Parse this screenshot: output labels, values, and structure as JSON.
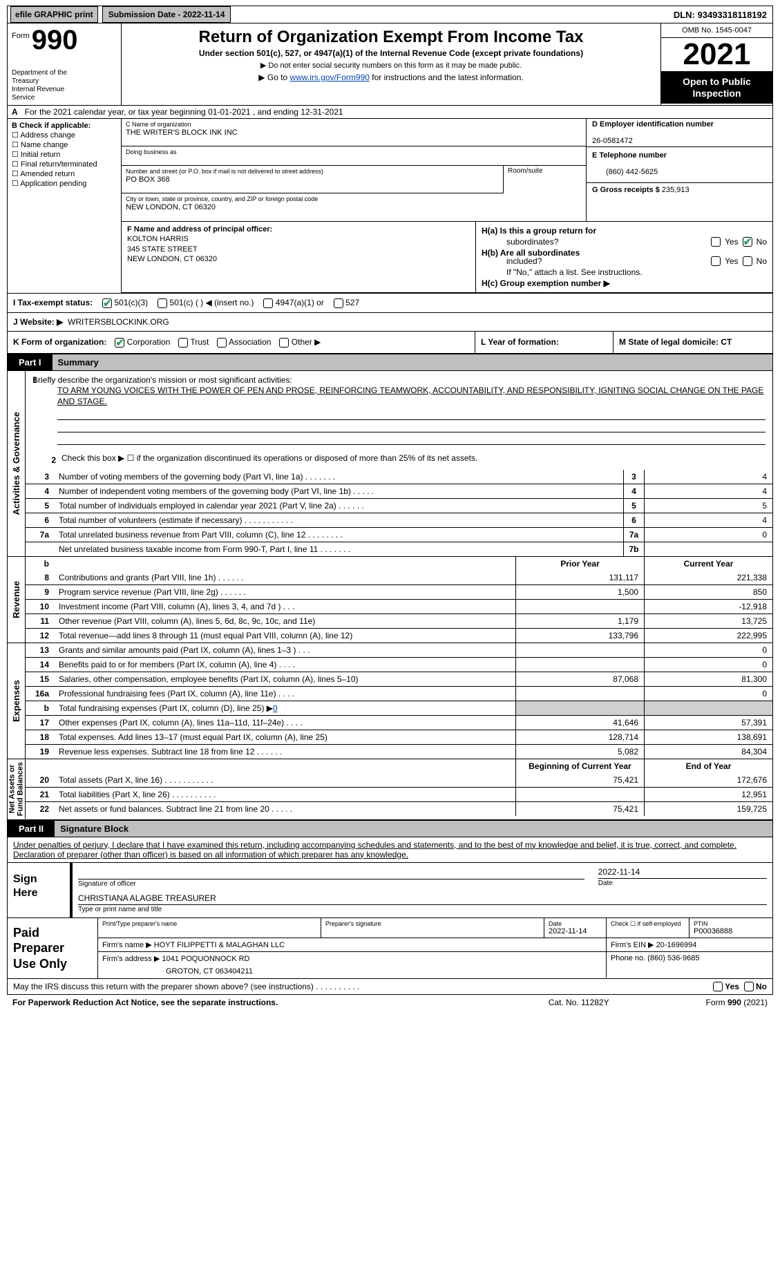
{
  "topbar": {
    "efile": "efile GRAPHIC print",
    "submission": "Submission Date - 2022-11-14",
    "dln": "DLN: 93493318118192"
  },
  "header": {
    "form_word": "Form",
    "form_num": "990",
    "title": "Return of Organization Exempt From Income Tax",
    "sub": "Under section 501(c), 527, or 4947(a)(1) of the Internal Revenue Code (except private foundations)",
    "note1": "▶ Do not enter social security numbers on this form as it may be made public.",
    "note2_pre": "▶ Go to ",
    "note2_link": "www.irs.gov/Form990",
    "note2_post": " for instructions and the latest information.",
    "dept": "Department of the Treasury\nInternal Revenue Service",
    "omb": "OMB No. 1545-0047",
    "year": "2021",
    "open": "Open to Public Inspection"
  },
  "row_a": {
    "label": "A",
    "text": "For the 2021 calendar year, or tax year beginning 01-01-2021    , and ending 12-31-2021"
  },
  "b": {
    "label": "B Check if applicable:",
    "opts": [
      "Address change",
      "Name change",
      "Initial return",
      "Final return/terminated",
      "Amended return",
      "Application pending"
    ]
  },
  "c": {
    "name_lbl": "C Name of organization",
    "name": "THE WRITER'S BLOCK INK INC",
    "dba_lbl": "Doing business as",
    "dba": "",
    "street_lbl": "Number and street (or P.O. box if mail is not delivered to street address)",
    "street": "PO BOX 368",
    "room_lbl": "Room/suite",
    "city_lbl": "City or town, state or province, country, and ZIP or foreign postal code",
    "city": "NEW LONDON, CT  06320"
  },
  "d": {
    "lbl": "D Employer identification number",
    "val": "26-0581472"
  },
  "e": {
    "lbl": "E Telephone number",
    "val": "(860) 442-5625"
  },
  "g": {
    "lbl": "G Gross receipts $",
    "val": "235,913"
  },
  "f": {
    "lbl": "F Name and address of principal officer:",
    "name": "KOLTON HARRIS",
    "street": "345 STATE STREET",
    "city": "NEW LONDON, CT  06320"
  },
  "h": {
    "a_lbl": "H(a)  Is this a group return for",
    "a_sub": "subordinates?",
    "b_lbl": "H(b)  Are all subordinates",
    "b_sub": "included?",
    "b_note": "If \"No,\" attach a list. See instructions.",
    "c_lbl": "H(c)  Group exemption number ▶",
    "yes": "Yes",
    "no": "No"
  },
  "i": {
    "lbl": "I   Tax-exempt status:",
    "o1": "501(c)(3)",
    "o2": "501(c) (   ) ◀ (insert no.)",
    "o3": "4947(a)(1) or",
    "o4": "527"
  },
  "j": {
    "lbl": "J   Website: ▶",
    "val": "WRITERSBLOCKINK.ORG"
  },
  "k": {
    "lbl": "K Form of organization:",
    "o1": "Corporation",
    "o2": "Trust",
    "o3": "Association",
    "o4": "Other ▶"
  },
  "l": {
    "lbl": "L Year of formation:"
  },
  "m": {
    "lbl": "M State of legal domicile: CT"
  },
  "part1": {
    "lbl": "Part I",
    "title": "Summary"
  },
  "summary": {
    "line1_lbl": "Briefly describe the organization's mission or most significant activities:",
    "mission": "TO ARM YOUNG VOICES WITH THE POWER OF PEN AND PROSE, REINFORCING TEAMWORK, ACCOUNTABILITY, AND RESPONSIBILITY, IGNITING SOCIAL CHANGE ON THE PAGE AND STAGE.",
    "line2": "Check this box ▶ ☐  if the organization discontinued its operations or disposed of more than 25% of its net assets.",
    "rows_gov": [
      {
        "n": "3",
        "t": "Number of voting members of the governing body (Part VI, line 1a)   .     .     .     .     .     .     .",
        "rn": "3",
        "v": "4"
      },
      {
        "n": "4",
        "t": "Number of independent voting members of the governing body (Part VI, line 1b)   .     .     .     .     .",
        "rn": "4",
        "v": "4"
      },
      {
        "n": "5",
        "t": "Total number of individuals employed in calendar year 2021 (Part V, line 2a)   .     .     .     .     .     .",
        "rn": "5",
        "v": "5"
      },
      {
        "n": "6",
        "t": "Total number of volunteers (estimate if necessary)    .     .     .     .     .     .     .     .     .     .     .",
        "rn": "6",
        "v": "4"
      },
      {
        "n": "7a",
        "t": "Total unrelated business revenue from Part VIII, column (C), line 12   .     .     .     .     .     .     .     .",
        "rn": "7a",
        "v": "0"
      },
      {
        "n": "",
        "t": "Net unrelated business taxable income from Form 990-T, Part I, line 11   .     .     .     .     .     .     .",
        "rn": "7b",
        "v": ""
      }
    ],
    "hdr_prior": "Prior Year",
    "hdr_curr": "Current Year",
    "rows_rev": [
      {
        "n": "8",
        "t": "Contributions and grants (Part VIII, line 1h)   .     .     .     .     .     .",
        "p": "131,117",
        "c": "221,338"
      },
      {
        "n": "9",
        "t": "Program service revenue (Part VIII, line 2g)   .     .     .     .     .     .",
        "p": "1,500",
        "c": "850"
      },
      {
        "n": "10",
        "t": "Investment income (Part VIII, column (A), lines 3, 4, and 7d )   .     .     .",
        "p": "",
        "c": "-12,918"
      },
      {
        "n": "11",
        "t": "Other revenue (Part VIII, column (A), lines 5, 6d, 8c, 9c, 10c, and 11e)",
        "p": "1,179",
        "c": "13,725"
      },
      {
        "n": "12",
        "t": "Total revenue—add lines 8 through 11 (must equal Part VIII, column (A), line 12)",
        "p": "133,796",
        "c": "222,995"
      }
    ],
    "rows_exp": [
      {
        "n": "13",
        "t": "Grants and similar amounts paid (Part IX, column (A), lines 1–3 )   .     .     .",
        "p": "",
        "c": "0"
      },
      {
        "n": "14",
        "t": "Benefits paid to or for members (Part IX, column (A), line 4)   .     .     .     .",
        "p": "",
        "c": "0"
      },
      {
        "n": "15",
        "t": "Salaries, other compensation, employee benefits (Part IX, column (A), lines 5–10)",
        "p": "87,068",
        "c": "81,300"
      },
      {
        "n": "16a",
        "t": "Professional fundraising fees (Part IX, column (A), line 11e)   .     .     .     .",
        "p": "",
        "c": "0"
      },
      {
        "n": "b",
        "t": "Total fundraising expenses (Part IX, column (D), line 25) ▶0",
        "p": "SHADED",
        "c": "SHADED"
      },
      {
        "n": "17",
        "t": "Other expenses (Part IX, column (A), lines 11a–11d, 11f–24e)   .     .     .     .",
        "p": "41,646",
        "c": "57,391"
      },
      {
        "n": "18",
        "t": "Total expenses. Add lines 13–17 (must equal Part IX, column (A), line 25)",
        "p": "128,714",
        "c": "138,691"
      },
      {
        "n": "19",
        "t": "Revenue less expenses. Subtract line 18 from line 12   .     .     .     .     .     .",
        "p": "5,082",
        "c": "84,304"
      }
    ],
    "hdr_boy": "Beginning of Current Year",
    "hdr_eoy": "End of Year",
    "rows_net": [
      {
        "n": "20",
        "t": "Total assets (Part X, line 16)   .     .     .     .     .     .     .     .     .     .     .",
        "p": "75,421",
        "c": "172,676"
      },
      {
        "n": "21",
        "t": "Total liabilities (Part X, line 26)   .     .     .     .     .     .     .     .     .     .",
        "p": "",
        "c": "12,951"
      },
      {
        "n": "22",
        "t": "Net assets or fund balances. Subtract line 21 from line 20   .     .     .     .     .",
        "p": "75,421",
        "c": "159,725"
      }
    ],
    "vlabels": {
      "gov": "Activities & Governance",
      "rev": "Revenue",
      "exp": "Expenses",
      "net": "Net Assets or\nFund Balances"
    }
  },
  "part2": {
    "lbl": "Part II",
    "title": "Signature Block"
  },
  "sig": {
    "decl": "Under penalties of perjury, I declare that I have examined this return, including accompanying schedules and statements, and to the best of my knowledge and belief, it is true, correct, and complete. Declaration of preparer (other than officer) is based on all information of which preparer has any knowledge.",
    "sign_here": "Sign Here",
    "date": "2022-11-14",
    "sig_lbl": "Signature of officer",
    "date_lbl": "Date",
    "officer": "CHRISTIANA ALAGBE  TREASURER",
    "officer_lbl": "Type or print name and title"
  },
  "paid": {
    "label": "Paid Preparer Use Only",
    "r1": {
      "c1_lbl": "Print/Type preparer's name",
      "c2_lbl": "Preparer's signature",
      "c3_lbl": "Date",
      "c3_val": "2022-11-14",
      "c4_lbl": "Check ☐  if self-employed",
      "c5_lbl": "PTIN",
      "c5_val": "P00036888"
    },
    "r2": {
      "c1_lbl": "Firm's name      ▶",
      "c1_val": "HOYT FILIPPETTI & MALAGHAN LLC",
      "c2_lbl": "Firm's EIN ▶",
      "c2_val": "20-1696994"
    },
    "r3": {
      "c1_lbl": "Firm's address ▶",
      "c1_val": "1041 POQUONNOCK RD",
      "c1_val2": "GROTON, CT  063404211",
      "c2_lbl": "Phone no.",
      "c2_val": "(860) 536-9685"
    }
  },
  "discuss": {
    "text": "May the IRS discuss this return with the preparer shown above? (see instructions)   .     .     .     .     .     .     .     .     .     .",
    "yes": "Yes",
    "no": "No"
  },
  "footer": {
    "left": "For Paperwork Reduction Act Notice, see the separate instructions.",
    "mid": "Cat. No. 11282Y",
    "right": "Form 990 (2021)"
  }
}
